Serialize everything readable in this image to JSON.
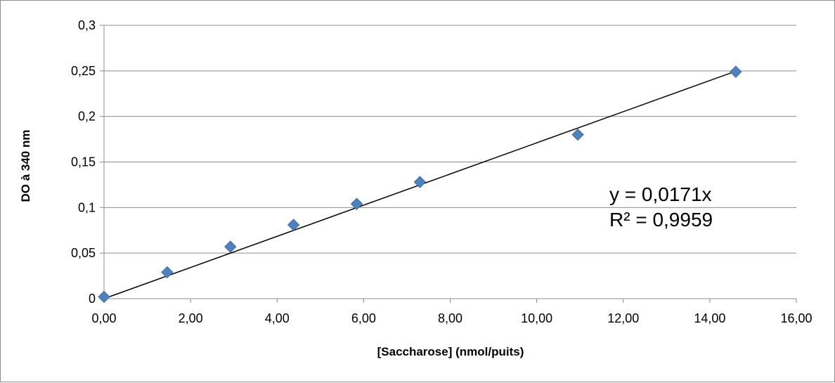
{
  "chart_data": {
    "type": "scatter",
    "title": "",
    "xlabel": "[Saccharose] (nmol/puits)",
    "ylabel": "DO à 340 nm",
    "xlim": [
      0,
      16
    ],
    "ylim": [
      0,
      0.3
    ],
    "x_ticks": [
      "0,00",
      "2,00",
      "4,00",
      "6,00",
      "8,00",
      "10,00",
      "12,00",
      "14,00",
      "16,00"
    ],
    "y_ticks": [
      "0",
      "0,05",
      "0,1",
      "0,15",
      "0,2",
      "0,25",
      "0,3"
    ],
    "grid": "horizontal",
    "marker": "diamond",
    "series": [
      {
        "color": "#4f81bd",
        "points": [
          {
            "x": 0.0,
            "y": 0.002
          },
          {
            "x": 1.46,
            "y": 0.029
          },
          {
            "x": 2.92,
            "y": 0.057
          },
          {
            "x": 4.38,
            "y": 0.081
          },
          {
            "x": 5.84,
            "y": 0.104
          },
          {
            "x": 7.3,
            "y": 0.128
          },
          {
            "x": 10.95,
            "y": 0.18
          },
          {
            "x": 14.6,
            "y": 0.249
          }
        ]
      }
    ],
    "trendline": {
      "type": "linear",
      "slope": 0.0171,
      "intercept": 0,
      "x_range": [
        0,
        14.6
      ],
      "color": "#000000"
    },
    "annotations": [
      "y = 0,0171x",
      "R² = 0,9959"
    ]
  }
}
